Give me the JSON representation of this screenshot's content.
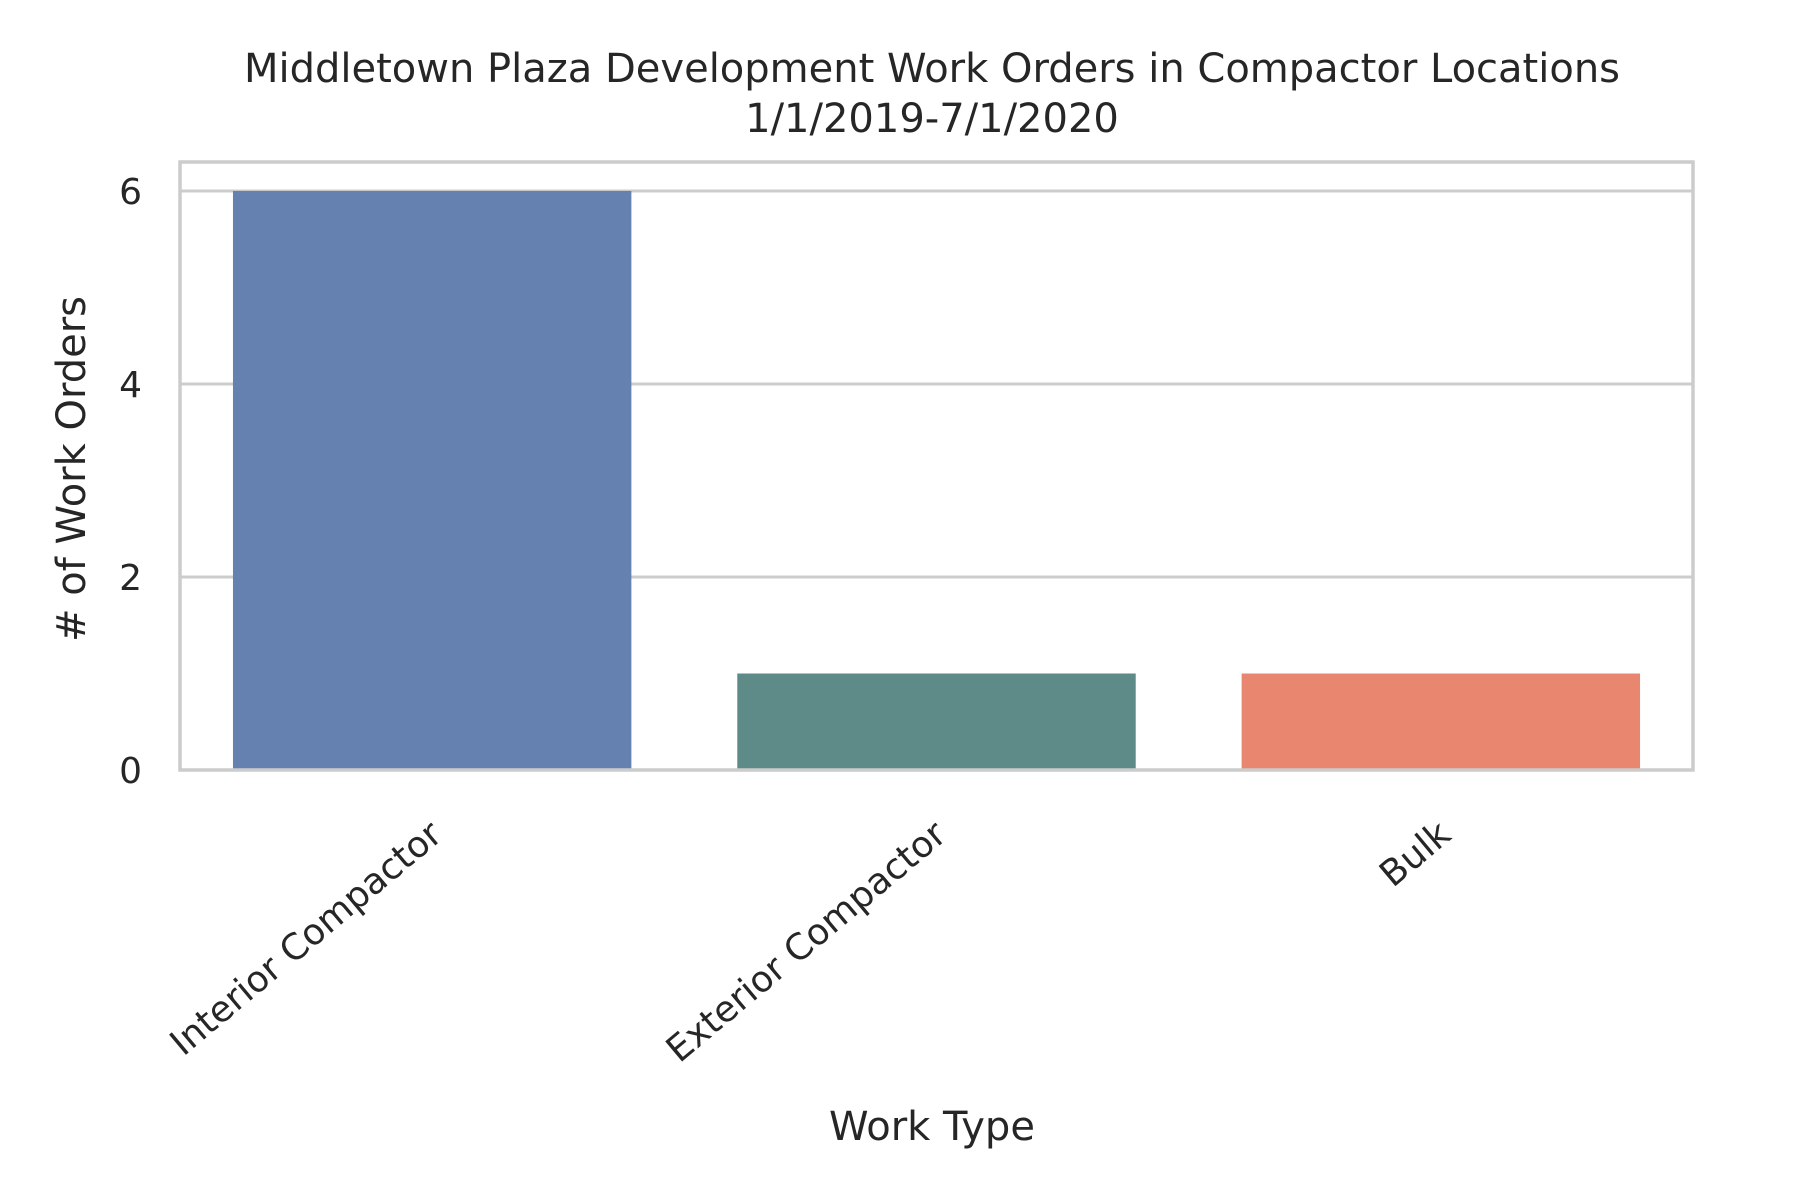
{
  "chart_data": {
    "type": "bar",
    "title": "Middletown Plaza Development Work Orders in Compactor Locations",
    "subtitle": "1/1/2019-7/1/2020",
    "xlabel": "Work Type",
    "ylabel": "# of Work Orders",
    "categories": [
      "Interior Compactor",
      "Exterior Compactor",
      "Bulk"
    ],
    "values": [
      6,
      1,
      1
    ],
    "colors": [
      "#6581b0",
      "#5e8a87",
      "#e88670"
    ],
    "ylim": [
      0,
      6.3
    ],
    "yticks": [
      0,
      2,
      4,
      6
    ],
    "grid": true,
    "legend": "none"
  }
}
